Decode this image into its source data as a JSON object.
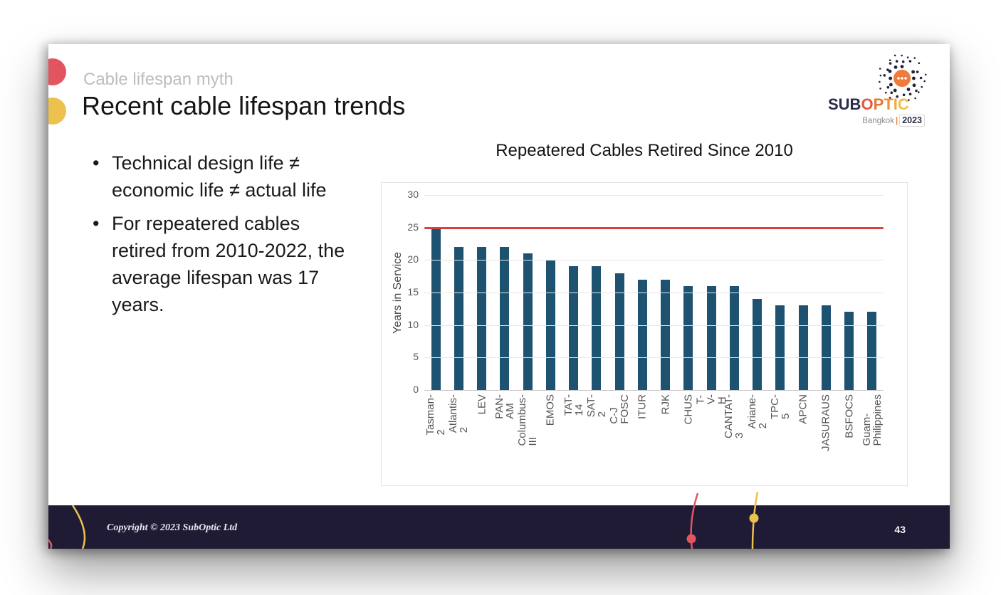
{
  "slide": {
    "kicker": "Cable lifespan myth",
    "title": "Recent cable lifespan trends",
    "bullets": [
      "Technical design life ≠ economic life ≠ actual life",
      "For repeatered cables retired from 2010-2022, the average lifespan was 17 years."
    ],
    "copyright": "Copyright © 2023 SubOptic Ltd",
    "page_number": "43"
  },
  "logo": {
    "sub": "SUB",
    "optic": "OPTIC",
    "optic_colors": [
      "#e25a3c",
      "#e97430",
      "#ee9033",
      "#f0a83b",
      "#ecc24a"
    ],
    "city": "Bangkok",
    "divider": "|",
    "year": "2023"
  },
  "chart_data": {
    "type": "bar",
    "title": "Repeatered Cables Retired Since 2010",
    "xlabel": "",
    "ylabel": "Years in Service",
    "ylim": [
      0,
      30
    ],
    "yticks": [
      0,
      5,
      10,
      15,
      20,
      25,
      30
    ],
    "grid": true,
    "legend": "none",
    "bar_color": "#1e5271",
    "reference_line": {
      "value": 25,
      "color": "#d94040"
    },
    "categories": [
      "Tasman-2",
      "Atlantis-2",
      "LEV",
      "PAN-AM",
      "Columbus-III",
      "EMOS",
      "TAT-14",
      "SAT-2",
      "C-J FOSC",
      "ITUR",
      "RJK",
      "CHUS",
      "T-V-H",
      "CANTAT-3",
      "Ariane-2",
      "TPC-5",
      "APCN",
      "JASURAUS",
      "BSFOCS",
      "Guam-\nPhilippines"
    ],
    "values": [
      25,
      22,
      22,
      22,
      21,
      20,
      19,
      19,
      18,
      17,
      17,
      16,
      16,
      16,
      14,
      13,
      13,
      13,
      12,
      12
    ]
  },
  "colors": {
    "accent_red": "#e25560",
    "accent_yellow": "#ecc14d",
    "footer_bg": "#1f1b35",
    "bar": "#1e5271",
    "reference_red": "#d94040",
    "logo_navy": "#2b2a4a"
  }
}
